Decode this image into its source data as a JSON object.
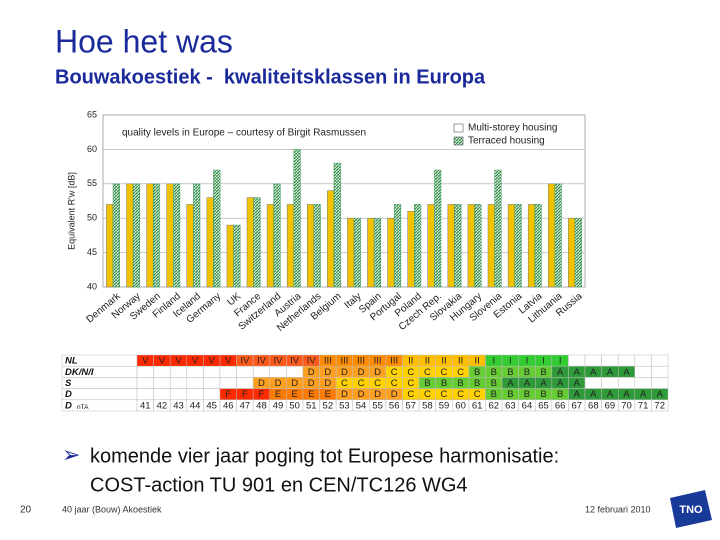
{
  "header": {
    "title": "Hoe het was",
    "subtitle": "Bouwakoestiek -  kwaliteitsklassen in Europa"
  },
  "chart_data": {
    "type": "bar",
    "annotation": "quality levels in Europe – courtesy of Birgit Rasmussen",
    "y_label": "Equivalent R'w [dB]",
    "categories": [
      "Denmark",
      "Norway",
      "Sweden",
      "Finland",
      "Iceland",
      "Germany",
      "UK",
      "France",
      "Switzerland",
      "Austria",
      "Netherlands",
      "Belgium",
      "Italy",
      "Spain",
      "Portugal",
      "Poland",
      "Czech Rep.",
      "Slovakia",
      "Hungary",
      "Slovenia",
      "Estonia",
      "Latvia",
      "Lithuania",
      "Russia"
    ],
    "series": [
      {
        "name": "Multi-storey housing",
        "color": "#f2c200",
        "values": [
          52,
          55,
          55,
          55,
          52,
          53,
          49,
          53,
          52,
          52,
          52,
          54,
          50,
          50,
          50,
          51,
          52,
          52,
          52,
          52,
          52,
          52,
          55,
          50
        ]
      },
      {
        "name": "Terraced housing",
        "color": "#3a9a5a",
        "values": [
          55,
          55,
          55,
          55,
          55,
          57,
          49,
          53,
          55,
          60,
          52,
          58,
          50,
          50,
          52,
          52,
          57,
          52,
          52,
          57,
          52,
          52,
          55,
          50
        ]
      }
    ],
    "ylim": [
      40,
      65
    ],
    "yticks": [
      40,
      45,
      50,
      55,
      60,
      65
    ],
    "grid": true,
    "legend": "top-right"
  },
  "table": {
    "class_colors": {
      "V": "#ff2a00",
      "IV": "#ff5a1a",
      "III": "#ff8c00",
      "II": "#ffbf00",
      "I": "#33cc33",
      "F": "#ff2a00",
      "E": "#ff7a00",
      "D": "#ffa020",
      "C": "#ffd200",
      "B": "#66cc33",
      "A": "#2f9a3a"
    },
    "rows": [
      {
        "label": "NL",
        "cells": [
          "V",
          "V",
          "V",
          "V",
          "V",
          "V",
          "IV",
          "IV",
          "IV",
          "IV",
          "IV",
          "III",
          "III",
          "III",
          "III",
          "III",
          "II",
          "II",
          "II",
          "II",
          "II",
          "I",
          "I",
          "I",
          "I",
          "I",
          null,
          null,
          null,
          null,
          null,
          null
        ]
      },
      {
        "label": "DK/N/I",
        "cells": [
          null,
          null,
          null,
          null,
          null,
          null,
          null,
          null,
          null,
          null,
          "D",
          "D",
          "D",
          "D",
          "D",
          "C",
          "C",
          "C",
          "C",
          "C",
          "B",
          "B",
          "B",
          "B",
          "B",
          "A",
          "A",
          "A",
          "A",
          "A",
          null,
          null
        ]
      },
      {
        "label": "S",
        "cells": [
          null,
          null,
          null,
          null,
          null,
          null,
          null,
          "D",
          "D",
          "D",
          "D",
          "D",
          "C",
          "C",
          "C",
          "C",
          "C",
          "B",
          "B",
          "B",
          "B",
          "B",
          "A",
          "A",
          "A",
          "A",
          "A",
          null,
          null,
          null,
          null,
          null
        ]
      },
      {
        "label": "D",
        "cells": [
          null,
          null,
          null,
          null,
          null,
          "F",
          "F",
          "F",
          "E",
          "E",
          "E",
          "E",
          "D",
          "D",
          "D",
          "D",
          "C",
          "C",
          "C",
          "C",
          "C",
          "B",
          "B",
          "B",
          "B",
          "B",
          "A",
          "A",
          "A",
          "A",
          "A",
          "A"
        ]
      },
      {
        "label": "D",
        "sublabel": "nTA",
        "cells": [
          41,
          42,
          43,
          44,
          45,
          46,
          47,
          48,
          49,
          50,
          51,
          52,
          53,
          54,
          55,
          56,
          57,
          58,
          59,
          60,
          61,
          62,
          63,
          64,
          65,
          66,
          67,
          68,
          69,
          70,
          71,
          72
        ]
      }
    ]
  },
  "bullet": {
    "line1": "komende vier jaar poging tot Europese harmonisatie:",
    "line2": "COST-action TU 901 en CEN/TC126 WG4"
  },
  "footer": {
    "page": "20",
    "left": "40 jaar (Bouw) Akoestiek",
    "date": "12 februari 2010",
    "logo": "TNO"
  }
}
